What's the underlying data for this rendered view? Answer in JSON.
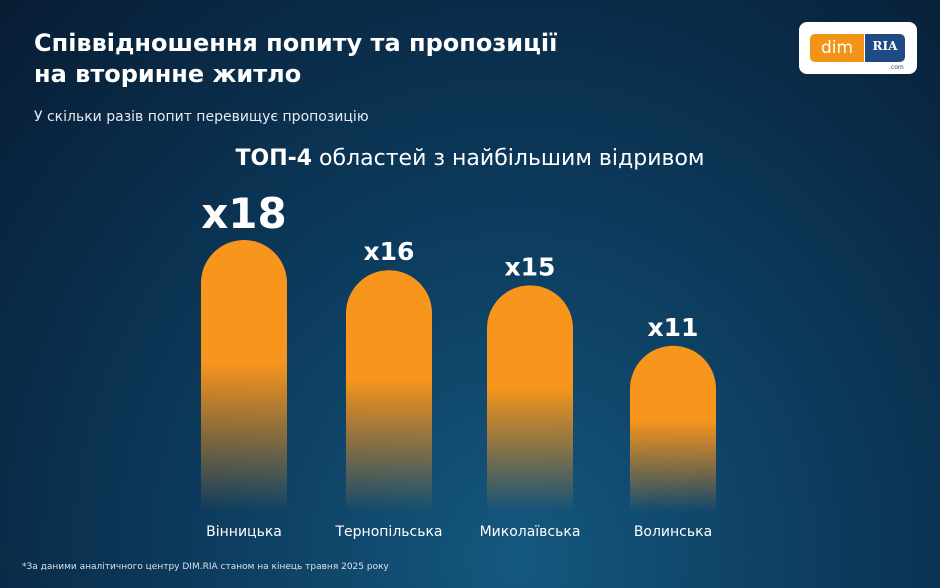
{
  "header": {
    "title": "Співвідношення попиту та пропозиції на вторинне житло",
    "subtitle": "У скільки разів попит перевищує пропозицію"
  },
  "logo": {
    "left": "dim",
    "right": "RIA",
    "suffix": ".com"
  },
  "chart_data": {
    "type": "bar",
    "title_bold": "ТОП-4",
    "title": "областей з найбільшим відривом",
    "categories": [
      "Вінницька",
      "Тернопільська",
      "Миколаївська",
      "Волинська"
    ],
    "values": [
      18,
      16,
      15,
      11
    ],
    "value_labels": [
      "x18",
      "x16",
      "x15",
      "x11"
    ],
    "color": "#f7951d"
  },
  "footnote": "*За даними аналітичного центру DIM.RIA станом на кінець травня 2025 року"
}
